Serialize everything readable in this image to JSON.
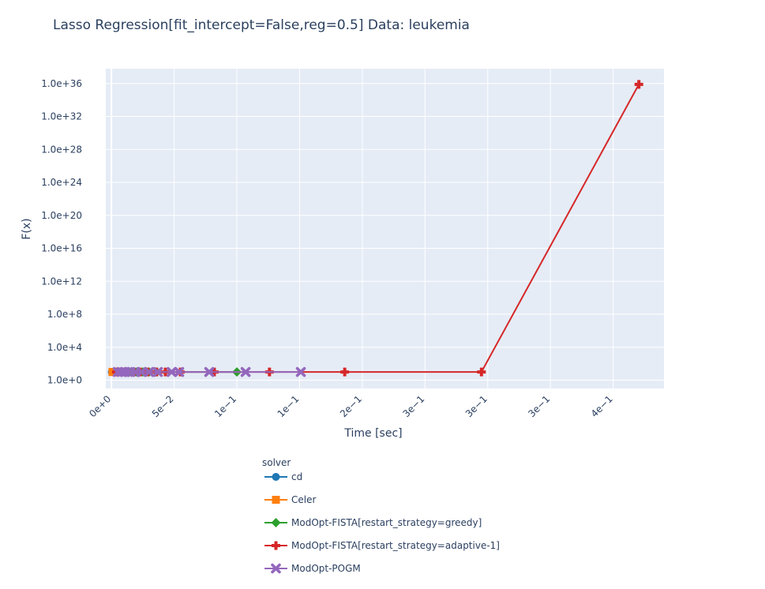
{
  "chart_data": {
    "type": "line",
    "title": "Lasso Regression[fit_intercept=False,reg=0.5] Data: leukemia",
    "xlabel": "Time [sec]",
    "ylabel": "F(x)",
    "x_tick_labels": [
      "0e+0",
      "5e−2",
      "1e−1",
      "1e−1",
      "2e−1",
      "3e−1",
      "3e−1",
      "3e−1",
      "4e−1"
    ],
    "x_tick_values": [
      0,
      0.05,
      0.1,
      0.15,
      0.2,
      0.25,
      0.3,
      0.35,
      0.4
    ],
    "y_tick_labels": [
      "1.0e+0",
      "1.0e+4",
      "1.0e+8",
      "1.0e+12",
      "1.0e+16",
      "1.0e+20",
      "1.0e+24",
      "1.0e+28",
      "1.0e+32",
      "1.0e+36"
    ],
    "y_tick_exponents": [
      0,
      4,
      8,
      12,
      16,
      20,
      24,
      28,
      32,
      36
    ],
    "xlim": [
      -0.0045,
      0.4405
    ],
    "ylim_log10": [
      -1.0,
      37.8
    ],
    "y_scale": "log",
    "grid": true,
    "legend_title": "solver",
    "legend_position": "bottom",
    "series": [
      {
        "name": "cd",
        "color": "#1f77b4",
        "marker": "circle",
        "x": [
          0.0003,
          0.0008,
          0.0013,
          0.0019,
          0.0025,
          0.0032,
          0.004,
          0.0048
        ],
        "log10_y": [
          1.0,
          1.0,
          1.0,
          1.0,
          1.0,
          1.0,
          1.0,
          1.0
        ]
      },
      {
        "name": "Celer",
        "color": "#ff7f0e",
        "marker": "square",
        "x": [
          0.0008,
          0.0015,
          0.0022,
          0.003,
          0.0038,
          0.0046,
          0.0055
        ],
        "log10_y": [
          1.0,
          1.0,
          1.0,
          1.0,
          1.0,
          1.0,
          1.0
        ]
      },
      {
        "name": "ModOpt-FISTA[restart_strategy=greedy]",
        "color": "#2ca02c",
        "marker": "diamond",
        "x": [
          0.005,
          0.008,
          0.012,
          0.016,
          0.02,
          0.025,
          0.03,
          0.036,
          0.1
        ],
        "log10_y": [
          1.0,
          1.0,
          1.0,
          1.0,
          1.0,
          1.0,
          1.0,
          1.0,
          1.0
        ]
      },
      {
        "name": "ModOpt-FISTA[restart_strategy=adaptive-1]",
        "color": "#d62728",
        "marker": "cross",
        "x": [
          0.004,
          0.006,
          0.009,
          0.013,
          0.018,
          0.023,
          0.029,
          0.036,
          0.043,
          0.055,
          0.082,
          0.126,
          0.186,
          0.295,
          0.4205
        ],
        "log10_y": [
          1.0,
          1.0,
          1.0,
          1.0,
          1.0,
          1.0,
          1.0,
          1.0,
          1.0,
          1.0,
          1.0,
          1.0,
          1.0,
          1.0,
          35.9
        ]
      },
      {
        "name": "ModOpt-POGM",
        "color": "#9467bd",
        "marker": "x",
        "x": [
          0.005,
          0.008,
          0.011,
          0.015,
          0.019,
          0.024,
          0.03,
          0.037,
          0.048,
          0.054,
          0.078,
          0.107,
          0.151
        ],
        "log10_y": [
          1.0,
          1.0,
          1.0,
          1.0,
          1.0,
          1.0,
          1.0,
          1.0,
          1.0,
          1.0,
          1.0,
          1.0,
          1.0
        ]
      }
    ]
  }
}
